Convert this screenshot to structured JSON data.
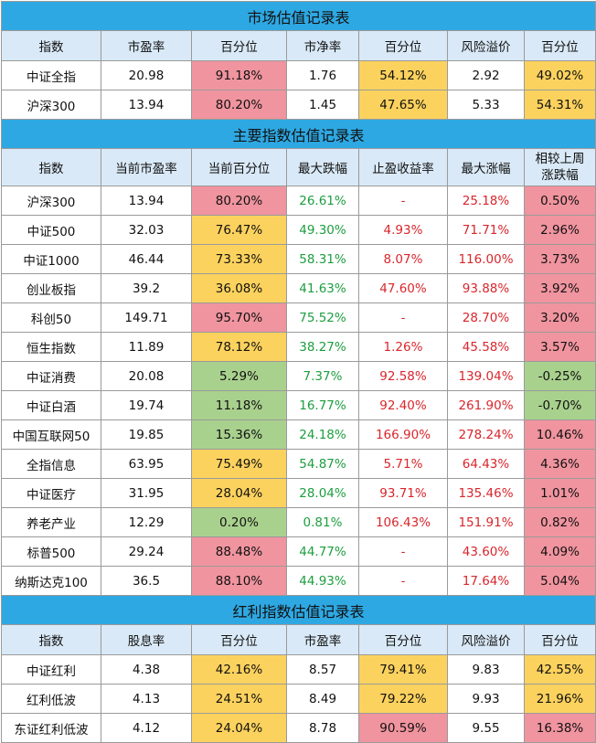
{
  "sections": [
    {
      "title": "市场估值记录表",
      "headers": [
        "指数",
        "市盈率",
        "百分位",
        "市净率",
        "百分位",
        "风险溢价",
        "百分位"
      ],
      "rows": [
        {
          "cells": [
            "中证全指",
            "20.98",
            "91.18%",
            "1.76",
            "54.12%",
            "2.92",
            "49.02%"
          ],
          "bg": [
            "",
            "",
            "red",
            "",
            "yellow",
            "",
            "yellow"
          ],
          "fg": [
            "",
            "",
            "",
            "",
            "",
            "",
            ""
          ]
        },
        {
          "cells": [
            "沪深300",
            "13.94",
            "80.20%",
            "1.45",
            "47.65%",
            "5.33",
            "54.31%"
          ],
          "bg": [
            "",
            "",
            "red",
            "",
            "yellow",
            "",
            "yellow"
          ],
          "fg": [
            "",
            "",
            "",
            "",
            "",
            "",
            ""
          ]
        }
      ]
    },
    {
      "title": "主要指数估值记录表",
      "headers": [
        "指数",
        "当前市盈率",
        "当前百分位",
        "最大跌幅",
        "止盈收益率",
        "最大涨幅",
        "相较上周涨跌幅"
      ],
      "rows": [
        {
          "cells": [
            "沪深300",
            "13.94",
            "80.20%",
            "26.61%",
            "-",
            "25.18%",
            "0.50%"
          ],
          "bg": [
            "",
            "",
            "red",
            "",
            "",
            "",
            "red"
          ],
          "fg": [
            "",
            "",
            "",
            "green",
            "red",
            "red",
            ""
          ]
        },
        {
          "cells": [
            "中证500",
            "32.03",
            "76.47%",
            "49.30%",
            "4.93%",
            "71.71%",
            "2.96%"
          ],
          "bg": [
            "",
            "",
            "yellow",
            "",
            "",
            "",
            "red"
          ],
          "fg": [
            "",
            "",
            "",
            "green",
            "red",
            "red",
            ""
          ]
        },
        {
          "cells": [
            "中证1000",
            "46.44",
            "73.33%",
            "58.31%",
            "8.07%",
            "116.00%",
            "3.73%"
          ],
          "bg": [
            "",
            "",
            "yellow",
            "",
            "",
            "",
            "red"
          ],
          "fg": [
            "",
            "",
            "",
            "green",
            "red",
            "red",
            ""
          ]
        },
        {
          "cells": [
            "创业板指",
            "39.2",
            "36.08%",
            "41.63%",
            "47.60%",
            "93.88%",
            "3.92%"
          ],
          "bg": [
            "",
            "",
            "yellow",
            "",
            "",
            "",
            "red"
          ],
          "fg": [
            "",
            "",
            "",
            "green",
            "red",
            "red",
            ""
          ]
        },
        {
          "cells": [
            "科创50",
            "149.71",
            "95.70%",
            "75.52%",
            "-",
            "28.70%",
            "3.20%"
          ],
          "bg": [
            "",
            "",
            "red",
            "",
            "",
            "",
            "red"
          ],
          "fg": [
            "",
            "",
            "",
            "green",
            "red",
            "red",
            ""
          ]
        },
        {
          "cells": [
            "恒生指数",
            "11.89",
            "78.12%",
            "38.27%",
            "1.26%",
            "45.58%",
            "3.57%"
          ],
          "bg": [
            "",
            "",
            "yellow",
            "",
            "",
            "",
            "red"
          ],
          "fg": [
            "",
            "",
            "",
            "green",
            "red",
            "red",
            ""
          ]
        },
        {
          "cells": [
            "中证消费",
            "20.08",
            "5.29%",
            "7.37%",
            "92.58%",
            "139.04%",
            "-0.25%"
          ],
          "bg": [
            "",
            "",
            "green",
            "",
            "",
            "",
            "green"
          ],
          "fg": [
            "",
            "",
            "",
            "green",
            "red",
            "red",
            ""
          ]
        },
        {
          "cells": [
            "中证白酒",
            "19.74",
            "11.18%",
            "16.77%",
            "92.40%",
            "261.90%",
            "-0.70%"
          ],
          "bg": [
            "",
            "",
            "green",
            "",
            "",
            "",
            "green"
          ],
          "fg": [
            "",
            "",
            "",
            "green",
            "red",
            "red",
            ""
          ]
        },
        {
          "cells": [
            "中国互联网50",
            "19.85",
            "15.36%",
            "24.18%",
            "166.90%",
            "278.24%",
            "10.46%"
          ],
          "bg": [
            "",
            "",
            "green",
            "",
            "",
            "",
            "red"
          ],
          "fg": [
            "",
            "",
            "",
            "green",
            "red",
            "red",
            ""
          ]
        },
        {
          "cells": [
            "全指信息",
            "63.95",
            "75.49%",
            "54.87%",
            "5.71%",
            "64.43%",
            "4.36%"
          ],
          "bg": [
            "",
            "",
            "yellow",
            "",
            "",
            "",
            "red"
          ],
          "fg": [
            "",
            "",
            "",
            "green",
            "red",
            "red",
            ""
          ]
        },
        {
          "cells": [
            "中证医疗",
            "31.95",
            "28.04%",
            "28.04%",
            "93.71%",
            "135.46%",
            "1.01%"
          ],
          "bg": [
            "",
            "",
            "yellow",
            "",
            "",
            "",
            "red"
          ],
          "fg": [
            "",
            "",
            "",
            "green",
            "red",
            "red",
            ""
          ]
        },
        {
          "cells": [
            "养老产业",
            "12.29",
            "0.20%",
            "0.81%",
            "106.43%",
            "151.91%",
            "0.82%"
          ],
          "bg": [
            "",
            "",
            "green",
            "",
            "",
            "",
            "red"
          ],
          "fg": [
            "",
            "",
            "",
            "green",
            "red",
            "red",
            ""
          ]
        },
        {
          "cells": [
            "标普500",
            "29.24",
            "88.48%",
            "44.77%",
            "-",
            "43.60%",
            "4.09%"
          ],
          "bg": [
            "",
            "",
            "red",
            "",
            "",
            "",
            "red"
          ],
          "fg": [
            "",
            "",
            "",
            "green",
            "red",
            "red",
            ""
          ]
        },
        {
          "cells": [
            "纳斯达克100",
            "36.5",
            "88.10%",
            "44.93%",
            "-",
            "17.64%",
            "5.04%"
          ],
          "bg": [
            "",
            "",
            "red",
            "",
            "",
            "",
            "red"
          ],
          "fg": [
            "",
            "",
            "",
            "green",
            "red",
            "red",
            ""
          ]
        }
      ]
    },
    {
      "title": "红利指数估值记录表",
      "headers": [
        "指数",
        "股息率",
        "百分位",
        "市盈率",
        "百分位",
        "风险溢价",
        "百分位"
      ],
      "rows": [
        {
          "cells": [
            "中证红利",
            "4.38",
            "42.16%",
            "8.57",
            "79.41%",
            "9.83",
            "42.55%"
          ],
          "bg": [
            "",
            "",
            "yellow",
            "",
            "yellow",
            "",
            "yellow"
          ],
          "fg": [
            "",
            "",
            "",
            "",
            "",
            "",
            ""
          ]
        },
        {
          "cells": [
            "红利低波",
            "4.13",
            "24.51%",
            "8.49",
            "79.22%",
            "9.93",
            "21.96%"
          ],
          "bg": [
            "",
            "",
            "yellow",
            "",
            "yellow",
            "",
            "yellow"
          ],
          "fg": [
            "",
            "",
            "",
            "",
            "",
            "",
            ""
          ]
        },
        {
          "cells": [
            "东证红利低波",
            "4.12",
            "24.04%",
            "8.78",
            "90.59%",
            "9.55",
            "16.38%"
          ],
          "bg": [
            "",
            "",
            "yellow",
            "",
            "red",
            "",
            "red"
          ],
          "fg": [
            "",
            "",
            "",
            "",
            "",
            "",
            ""
          ]
        }
      ]
    }
  ],
  "colors": {
    "red": "#f0949f",
    "yellow": "#fcd25e",
    "green": "#a9d18e",
    "title": "#2ea8e3",
    "header": "#d9e9f7",
    "text_green": "#1c9e3e",
    "text_red": "#d9262c"
  }
}
